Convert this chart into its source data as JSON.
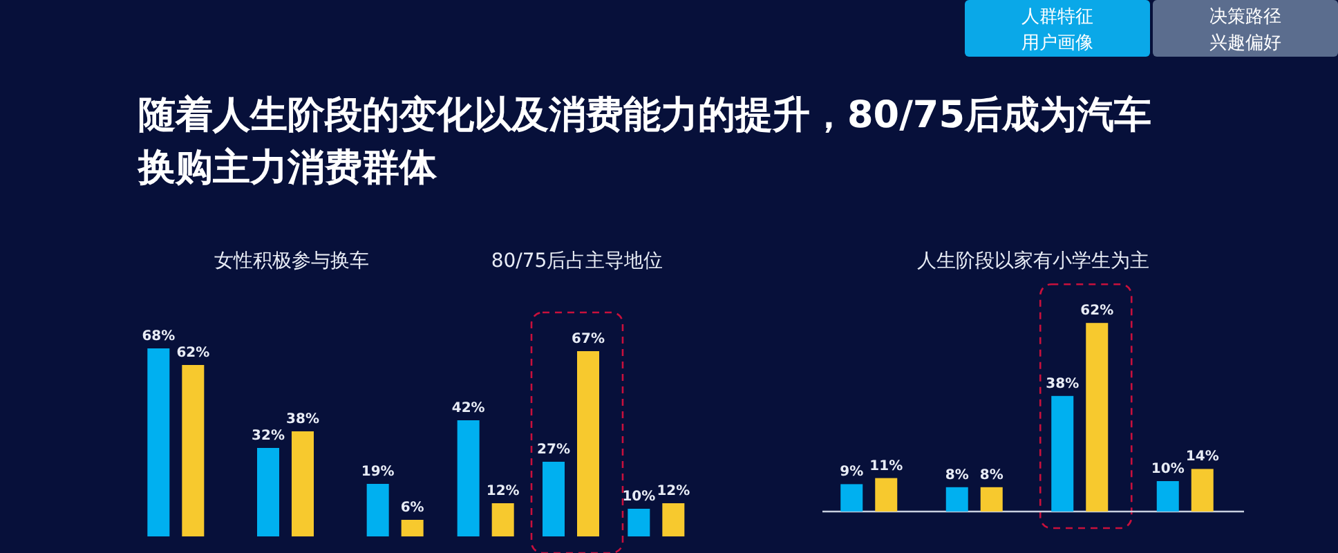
{
  "chart_data": [
    {
      "type": "other",
      "title": "随着人生阶段的变化以及消费能力的提升，80/75后成为汽车换购主力消费群体",
      "annotations": [
        "人群特征",
        "用户画像",
        "决策路径",
        "兴趣偏好"
      ]
    },
    {
      "type": "bar",
      "title": "女性积极参与换车",
      "categories": [
        null,
        null,
        null
      ],
      "series": [
        {
          "color": "#00b0f0",
          "values": [
            68,
            32,
            19
          ],
          "value_labels": [
            "68%",
            "32%",
            "19%"
          ]
        },
        {
          "color": "#f7c92e",
          "values": [
            62,
            38,
            6
          ],
          "value_labels": [
            "62%",
            "38%",
            "6%"
          ]
        }
      ]
    },
    {
      "type": "bar",
      "title": "80/75后占主导地位",
      "categories": [
        null,
        null,
        null
      ],
      "series": [
        {
          "color": "#00b0f0",
          "values": [
            42,
            27,
            10
          ],
          "value_labels": [
            "42%",
            "27%",
            "10%"
          ]
        },
        {
          "color": "#f7c92e",
          "values": [
            12,
            67,
            12
          ],
          "value_labels": [
            "12%",
            "67%",
            "12%"
          ]
        }
      ]
    },
    {
      "type": "bar",
      "title": "人生阶段以家有小学生为主",
      "categories": [
        null,
        null,
        null,
        null
      ],
      "series": [
        {
          "color": "#00b0f0",
          "values": [
            9,
            8,
            38,
            10
          ],
          "value_labels": [
            "9%",
            "8%",
            "38%",
            "10%"
          ]
        },
        {
          "color": "#f7c92e",
          "values": [
            11,
            8,
            62,
            14
          ],
          "value_labels": [
            "11%",
            "8%",
            "62%",
            "14%"
          ]
        }
      ]
    }
  ]
}
